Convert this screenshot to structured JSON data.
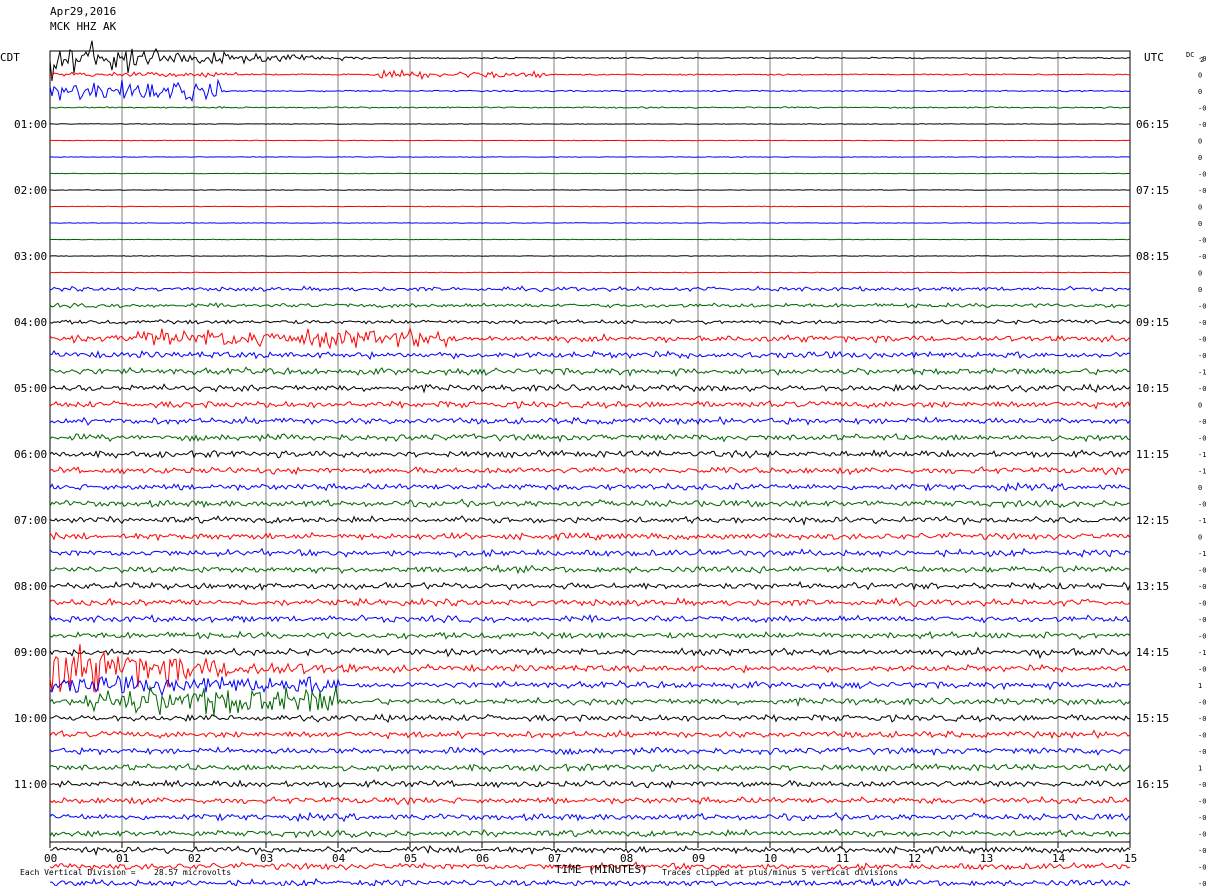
{
  "header": {
    "date": "Apr29,2016",
    "station": "MCK HHZ AK"
  },
  "chart_data": {
    "type": "line",
    "title": "",
    "left_timezone": "CDT",
    "right_timezone": "UTC",
    "dc_label": "DC",
    "dc_value": "2",
    "xlabel": "TIME (MINUTES)",
    "xlim": [
      0,
      15
    ],
    "x_ticks": [
      "00",
      "01",
      "02",
      "03",
      "04",
      "05",
      "06",
      "07",
      "08",
      "09",
      "10",
      "11",
      "12",
      "13",
      "14",
      "15"
    ],
    "hour_labels_left": [
      "01:00",
      "02:00",
      "03:00",
      "04:00",
      "05:00",
      "06:00",
      "07:00",
      "08:00",
      "09:00",
      "10:00",
      "11:00"
    ],
    "hour_labels_right": [
      "06:15",
      "07:15",
      "08:15",
      "09:15",
      "10:15",
      "11:15",
      "12:15",
      "13:15",
      "14:15",
      "15:15",
      "16:15"
    ],
    "trace_colors": [
      "#000000",
      "#ff0000",
      "#0000ff",
      "#006400"
    ],
    "dc_offsets": [
      "-0",
      "0",
      "0",
      "-0",
      "-0",
      "0",
      "0",
      "-0",
      "-0",
      "0",
      "0",
      "-0",
      "-0",
      "0",
      "0",
      "-0",
      "-0",
      "-0",
      "-0",
      "-1",
      "-0",
      "0",
      "-0",
      "-0",
      "-1",
      "-1",
      "0",
      "-0",
      "-1",
      "0",
      "-1",
      "-0",
      "-0",
      "-0",
      "-0",
      "-0",
      "-1",
      "-0",
      "1",
      "-0",
      "-0",
      "-0",
      "-0",
      "1",
      "-0",
      "-0",
      "-0",
      "-0",
      "-0",
      "-0",
      "-0",
      "-0"
    ],
    "events": [
      {
        "trace": 0,
        "start_min": 0.0,
        "end_min": 4.5,
        "amplitude": 5,
        "decay": true
      },
      {
        "trace": 1,
        "start_min": 0.0,
        "end_min": 2.6,
        "amplitude": 0.4
      },
      {
        "trace": 1,
        "start_min": 4.5,
        "end_min": 6.9,
        "amplitude": 0.6
      },
      {
        "trace": 2,
        "start_min": 0.0,
        "end_min": 2.4,
        "amplitude": 1.6
      },
      {
        "trace": 17,
        "start_min": 1.2,
        "end_min": 5.5,
        "amplitude": 1.5
      },
      {
        "trace": 37,
        "start_min": 0.0,
        "end_min": 7.0,
        "amplitude": 5,
        "decay": true
      },
      {
        "trace": 38,
        "start_min": 0.0,
        "end_min": 4.0,
        "amplitude": 1.5
      },
      {
        "trace": 39,
        "start_min": 0.5,
        "end_min": 4.0,
        "amplitude": 2.5
      },
      {
        "trace": 36,
        "start_min": 13.5,
        "end_min": 15.0,
        "amplitude": 0.8
      }
    ],
    "vertical_division_label": "Each Vertical Division =",
    "vertical_division_value": "28.57 microvolts",
    "clip_note": "Traces clipped at plus/minus 5 vertical divisions"
  }
}
